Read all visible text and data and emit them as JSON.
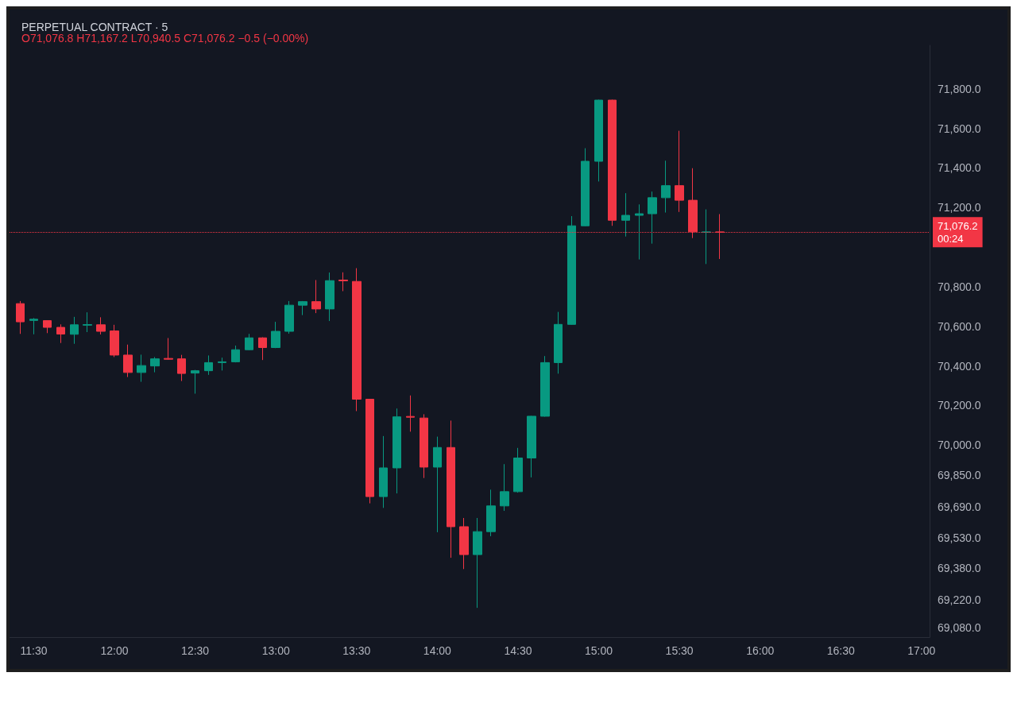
{
  "chart_data": {
    "type": "candlestick",
    "title": "PERPETUAL CONTRACT · 5",
    "subtitle": "O71,076.8 H71,167.2 L70,940.5 C71,076.2 −0.5 (−0.00%)",
    "x": [
      11.4167,
      11.5,
      11.5833,
      11.6667,
      11.75,
      11.8333,
      11.9167,
      12,
      12.0833,
      12.1667,
      12.25,
      12.3333,
      12.4167,
      12.5,
      12.5833,
      12.6667,
      12.75,
      12.8333,
      12.9167,
      13,
      13.0833,
      13.1667,
      13.25,
      13.3333,
      13.4167,
      13.5,
      13.5833,
      13.6667,
      13.75,
      13.8333,
      13.9167,
      14,
      14.0833,
      14.1667,
      14.25,
      14.3333,
      14.4167,
      14.5,
      14.5833,
      14.6667,
      14.75,
      14.8333,
      14.9167,
      15,
      15.0833,
      15.1667,
      15.25,
      15.3333,
      15.4167,
      15.5,
      15.5833,
      15.6667,
      15.75
    ],
    "ohlc": [
      [
        70715,
        70728,
        70562,
        70623
      ],
      [
        70630,
        70642,
        70560,
        70636
      ],
      [
        70629,
        70629,
        70566,
        70595
      ],
      [
        70595,
        70610,
        70516,
        70561
      ],
      [
        70560,
        70648,
        70512,
        70608
      ],
      [
        70606,
        70671,
        70571,
        70609
      ],
      [
        70608,
        70646,
        70559,
        70575
      ],
      [
        70577,
        70608,
        70445,
        70455
      ],
      [
        70455,
        70508,
        70344,
        70367
      ],
      [
        70367,
        70457,
        70320,
        70402
      ],
      [
        70400,
        70445,
        70368,
        70436
      ],
      [
        70438,
        70541,
        70432,
        70434
      ],
      [
        70436,
        70456,
        70324,
        70362
      ],
      [
        70364,
        70380,
        70260,
        70376
      ],
      [
        70376,
        70453,
        70355,
        70417
      ],
      [
        70417,
        70442,
        70377,
        70421
      ],
      [
        70421,
        70503,
        70418,
        70482
      ],
      [
        70482,
        70562,
        70480,
        70542
      ],
      [
        70542,
        70545,
        70430,
        70493
      ],
      [
        70493,
        70623,
        70490,
        70575
      ],
      [
        70575,
        70728,
        70563,
        70707
      ],
      [
        70707,
        70728,
        70657,
        70725
      ],
      [
        70725,
        70834,
        70667,
        70688
      ],
      [
        70688,
        70872,
        70627,
        70831
      ],
      [
        70834,
        70873,
        70778,
        70830
      ],
      [
        70827,
        70894,
        70172,
        70232
      ],
      [
        70232,
        70234,
        69706,
        69740
      ],
      [
        69740,
        70046,
        69683,
        69885
      ],
      [
        69885,
        70185,
        69756,
        70143
      ],
      [
        70145,
        70251,
        70068,
        70141
      ],
      [
        70137,
        70156,
        69834,
        69889
      ],
      [
        69889,
        70043,
        69560,
        69988
      ],
      [
        69988,
        70124,
        69431,
        69588
      ],
      [
        69588,
        69632,
        69374,
        69447
      ],
      [
        69447,
        69632,
        69178,
        69563
      ],
      [
        69563,
        69775,
        69540,
        69693
      ],
      [
        69693,
        69904,
        69668,
        69765
      ],
      [
        69765,
        69986,
        69760,
        69935
      ],
      [
        69935,
        70148,
        69837,
        70146
      ],
      [
        70146,
        70450,
        70144,
        70417
      ],
      [
        70417,
        70673,
        70361,
        70610
      ],
      [
        70610,
        71157,
        70608,
        71108
      ],
      [
        71108,
        71500,
        71106,
        71434
      ],
      [
        71434,
        71745,
        71332,
        71743
      ],
      [
        71743,
        71745,
        71108,
        71136
      ],
      [
        71136,
        71273,
        71054,
        71161
      ],
      [
        71161,
        71216,
        70938,
        71169
      ],
      [
        71169,
        71281,
        71018,
        71250
      ],
      [
        71250,
        71437,
        71175,
        71311
      ],
      [
        71311,
        71588,
        71178,
        71237
      ],
      [
        71237,
        71399,
        71046,
        71078
      ],
      [
        71076,
        71191,
        70915,
        71077
      ],
      [
        71076.8,
        71167.2,
        70940.5,
        71076.2
      ]
    ],
    "colors": [
      "#f23645",
      "#089981",
      "#f23645",
      "#f23645",
      "#089981",
      "#089981",
      "#f23645",
      "#f23645",
      "#f23645",
      "#089981",
      "#089981",
      "#f23645",
      "#f23645",
      "#089981",
      "#089981",
      "#089981",
      "#089981",
      "#089981",
      "#f23645",
      "#089981",
      "#089981",
      "#089981",
      "#f23645",
      "#089981",
      "#f23645",
      "#f23645",
      "#f23645",
      "#089981",
      "#089981",
      "#f23645",
      "#f23645",
      "#089981",
      "#f23645",
      "#f23645",
      "#089981",
      "#089981",
      "#089981",
      "#089981",
      "#089981",
      "#089981",
      "#089981",
      "#089981",
      "#089981",
      "#089981",
      "#f23645",
      "#089981",
      "#089981",
      "#089981",
      "#089981",
      "#f23645",
      "#f23645",
      "#089981",
      "#f23645"
    ],
    "xlim": [
      11.35,
      17.05
    ],
    "xticks": [
      {
        "value": 11.5,
        "label": "11:30"
      },
      {
        "value": 12,
        "label": "12:00"
      },
      {
        "value": 12.5,
        "label": "12:30"
      },
      {
        "value": 13,
        "label": "13:00"
      },
      {
        "value": 13.5,
        "label": "13:30"
      },
      {
        "value": 14,
        "label": "14:00"
      },
      {
        "value": 14.5,
        "label": "14:30"
      },
      {
        "value": 15,
        "label": "15:00"
      },
      {
        "value": 15.5,
        "label": "15:30"
      },
      {
        "value": 16,
        "label": "16:00"
      },
      {
        "value": 16.5,
        "label": "16:30"
      },
      {
        "value": 17,
        "label": "17:00"
      }
    ],
    "ylim": [
      69030,
      72020
    ],
    "yticks": [
      {
        "value": 69080,
        "label": "69,080.0"
      },
      {
        "value": 69220,
        "label": "69,220.0"
      },
      {
        "value": 69380,
        "label": "69,380.0"
      },
      {
        "value": 69530,
        "label": "69,530.0"
      },
      {
        "value": 69690,
        "label": "69,690.0"
      },
      {
        "value": 69850,
        "label": "69,850.0"
      },
      {
        "value": 70000,
        "label": "70,000.0"
      },
      {
        "value": 70200,
        "label": "70,200.0"
      },
      {
        "value": 70400,
        "label": "70,400.0"
      },
      {
        "value": 70600,
        "label": "70,600.0"
      },
      {
        "value": 70800,
        "label": "70,800.0"
      },
      {
        "value": 71200,
        "label": "71,200.0"
      },
      {
        "value": 71400,
        "label": "71,400.0"
      },
      {
        "value": 71600,
        "label": "71,600.0"
      },
      {
        "value": 71800,
        "label": "71,800.0"
      }
    ],
    "ref_lines": [
      {
        "axis": "y",
        "value": 71076.2,
        "label": "71,076.2",
        "color": "#f23645",
        "line_style": "dotted"
      }
    ],
    "annotations": [
      "00:24"
    ],
    "grid": false
  }
}
